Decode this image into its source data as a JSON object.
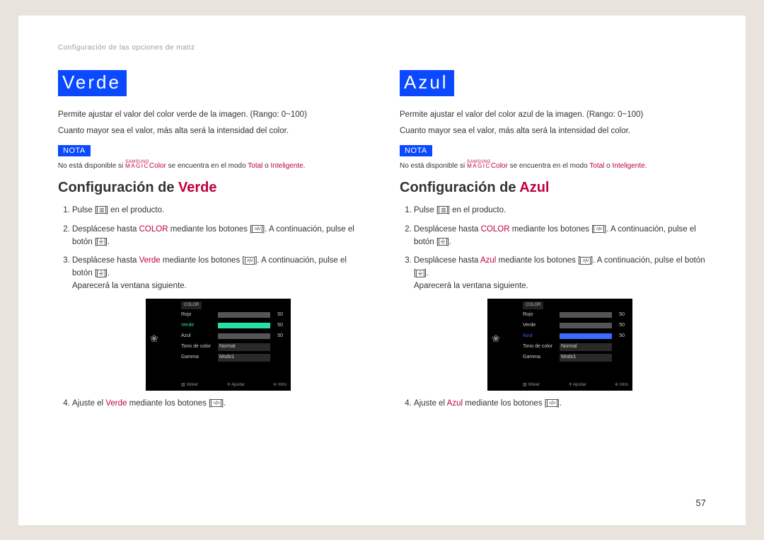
{
  "breadcrumb": "Configuración de las opciones de matiz",
  "page_number": "57",
  "note_label": "NOTA",
  "magic": {
    "top": "SAMSUNG",
    "bottom": "MAGIC",
    "suffix": "Color"
  },
  "note_parts": {
    "prefix": "No está disponible si ",
    "middle": " se encuentra en el modo ",
    "mode1": "Total",
    "or": " o ",
    "mode2": "Inteligente",
    "end": "."
  },
  "config_prefix": "Configuración de ",
  "steps_common": {
    "step1a": "Pulse [",
    "step1b": "] en el producto.",
    "step2a": "Desplácese hasta ",
    "step2_color": "COLOR",
    "step2b": " mediante los botones [",
    "step2c": "]. A continuación, pulse el botón [",
    "step2d": "].",
    "step3a": "Desplácese hasta ",
    "step3b": " mediante los botones [",
    "step3c": "]. A continuación, pulse el botón [",
    "step3d": "].",
    "step3e": "Aparecerá la ventana siguiente.",
    "step4a": "Ajuste el ",
    "step4b": " mediante los botones [",
    "step4c": "]."
  },
  "icons": {
    "menu": "▥",
    "updown": "˄/˅",
    "enter": "⎆",
    "leftright": "</>"
  },
  "left": {
    "title": "Verde",
    "desc1": "Permite ajustar el valor del color verde de la imagen. (Rango: 0~100)",
    "desc2": "Cuanto mayor sea el valor, más alta será la intensidad del color.",
    "menu": {
      "header": "COLOR",
      "rows": [
        {
          "label": "Rojo",
          "value": "50",
          "fill": "#6b6b6b",
          "pct": 50,
          "hl": false
        },
        {
          "label": "Verde",
          "value": "50",
          "fill": "#26e0a8",
          "pct": 50,
          "hl": true,
          "hl_color": "#26e0a8"
        },
        {
          "label": "Azul",
          "value": "50",
          "fill": "#6b6b6b",
          "pct": 50,
          "hl": false
        },
        {
          "label": "Tono de color",
          "sel": "Normal"
        },
        {
          "label": "Gamma",
          "sel": "Modo1"
        }
      ],
      "footer": [
        "Volver",
        "Ajustar",
        "Intro"
      ]
    }
  },
  "right": {
    "title": "Azul",
    "desc1": "Permite ajustar el valor del color azul de la imagen. (Rango: 0~100)",
    "desc2": "Cuanto mayor sea el valor, más alta será la intensidad del color.",
    "menu": {
      "header": "COLOR",
      "rows": [
        {
          "label": "Rojo",
          "value": "50",
          "fill": "#6b6b6b",
          "pct": 50,
          "hl": false
        },
        {
          "label": "Verde",
          "value": "50",
          "fill": "#6b6b6b",
          "pct": 50,
          "hl": false
        },
        {
          "label": "Azul",
          "value": "50",
          "fill": "#3a6cff",
          "pct": 50,
          "hl": true,
          "hl_color": "#3a6cff"
        },
        {
          "label": "Tono de color",
          "sel": "Normal"
        },
        {
          "label": "Gamma",
          "sel": "Modo1"
        }
      ],
      "footer": [
        "Volver",
        "Ajustar",
        "Intro"
      ]
    }
  }
}
